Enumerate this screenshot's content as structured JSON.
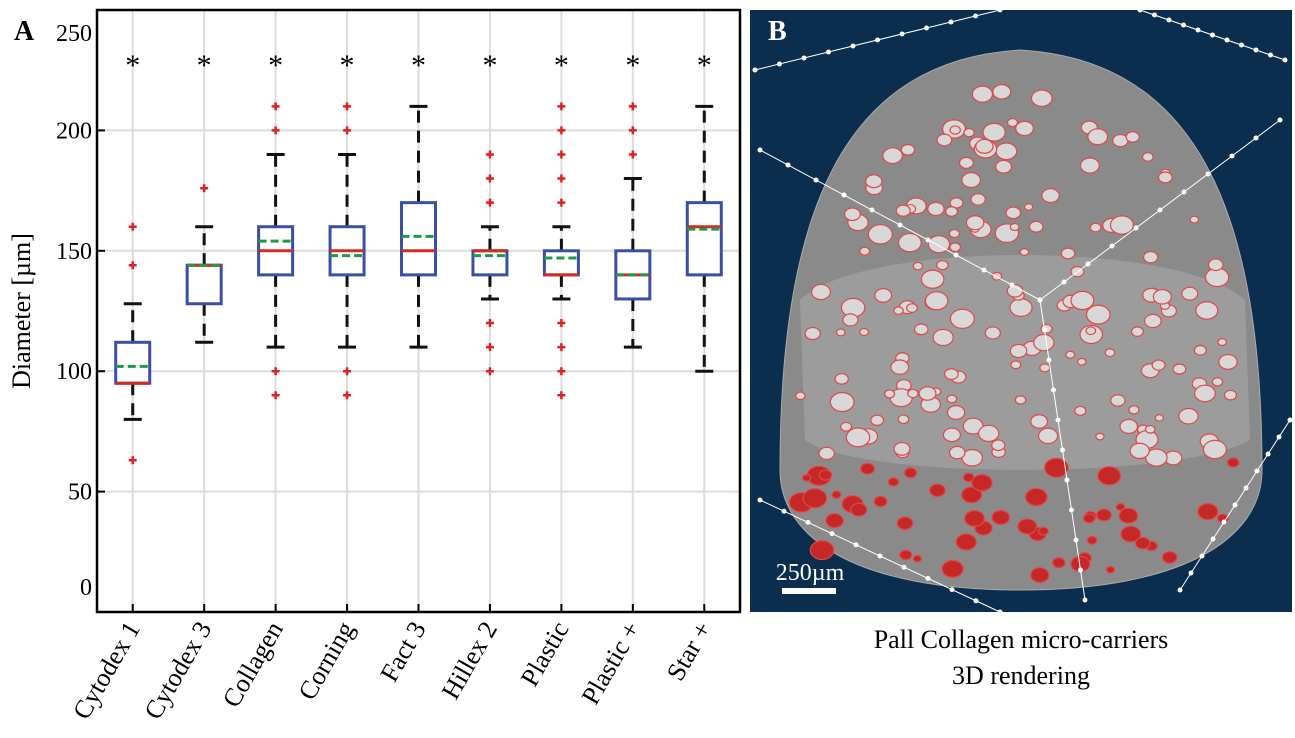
{
  "chart_data": {
    "type": "box",
    "panel_label": "A",
    "ylabel": "Diameter [µm]",
    "categories": [
      "Cytodex 1",
      "Cytodex 3",
      "Collagen",
      "Corning",
      "Fact 3",
      "Hillex 2",
      "Plastic",
      "Plastic +",
      "Star +"
    ],
    "significance": [
      "*",
      "*",
      "*",
      "*",
      "*",
      "*",
      "*",
      "*",
      "*"
    ],
    "boxes": [
      {
        "q1": 95,
        "median": 95,
        "q3": 112,
        "mean": 102,
        "whisker_low": 80,
        "whisker_high": 128,
        "outliers": [
          63,
          144,
          160
        ]
      },
      {
        "q1": 128,
        "median": 144,
        "q3": 144,
        "mean": 144,
        "whisker_low": 112,
        "whisker_high": 160,
        "outliers": [
          176
        ]
      },
      {
        "q1": 140,
        "median": 150,
        "q3": 160,
        "mean": 154,
        "whisker_low": 110,
        "whisker_high": 190,
        "outliers": [
          90,
          100,
          200,
          210
        ]
      },
      {
        "q1": 140,
        "median": 150,
        "q3": 160,
        "mean": 148,
        "whisker_low": 110,
        "whisker_high": 190,
        "outliers": [
          90,
          100,
          200,
          210
        ]
      },
      {
        "q1": 140,
        "median": 150,
        "q3": 170,
        "mean": 156,
        "whisker_low": 110,
        "whisker_high": 210,
        "outliers": []
      },
      {
        "q1": 140,
        "median": 150,
        "q3": 150,
        "mean": 148,
        "whisker_low": 130,
        "whisker_high": 160,
        "outliers": [
          100,
          110,
          120,
          170,
          180,
          190
        ]
      },
      {
        "q1": 140,
        "median": 140,
        "q3": 150,
        "mean": 147,
        "whisker_low": 130,
        "whisker_high": 160,
        "outliers": [
          90,
          100,
          110,
          120,
          170,
          180,
          190,
          200,
          210
        ]
      },
      {
        "q1": 130,
        "median": 140,
        "q3": 150,
        "mean": 140,
        "whisker_low": 110,
        "whisker_high": 180,
        "outliers": [
          190,
          200,
          210
        ]
      },
      {
        "q1": 140,
        "median": 160,
        "q3": 170,
        "mean": 159,
        "whisker_low": 100,
        "whisker_high": 210,
        "outliers": []
      }
    ],
    "box_color": "#3b4ea6",
    "median_color": "#d42a20",
    "mean_color": "#1d9a45",
    "whisker_color": "#111111",
    "outlier_color": "#e02020",
    "ylim": [
      0,
      250
    ],
    "yticks": [
      0,
      50,
      100,
      150,
      200,
      250
    ],
    "grid": true
  },
  "image_panel": {
    "panel_label": "B",
    "scale_bar": "250µm",
    "caption": [
      "Pall Collagen micro-carriers",
      "3D rendering"
    ]
  }
}
